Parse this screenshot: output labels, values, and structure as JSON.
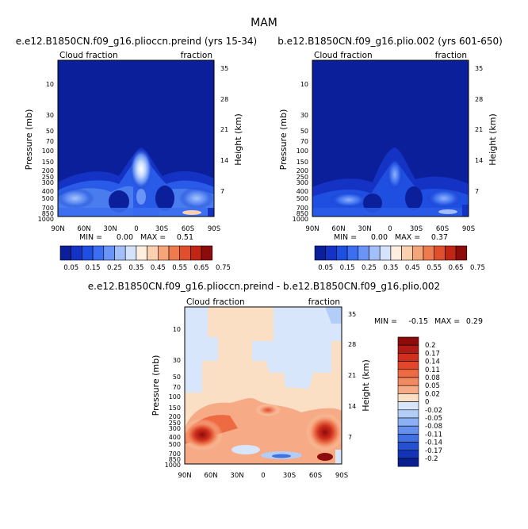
{
  "figure": {
    "title": "MAM"
  },
  "chart_data": [
    {
      "type": "heatmap",
      "title": "e.e12.B1850CN.f09_g16.plioccn.preind (yrs 15-34)",
      "left_string": "Cloud fraction",
      "right_string": "fraction",
      "ylabel": "Pressure (mb)",
      "ylabel_right": "Height (km)",
      "x_ticks": [
        "90N",
        "60N",
        "30N",
        "0",
        "30S",
        "60S",
        "90S"
      ],
      "y_ticks": [
        "10",
        "30",
        "50",
        "70",
        "100",
        "150",
        "200",
        "250",
        "300",
        "400",
        "500",
        "700",
        "850",
        "1000"
      ],
      "y_right_ticks": [
        "35",
        "28",
        "21",
        "14",
        "7"
      ],
      "min_label": "MIN =",
      "min_value": "0.00",
      "max_label": "MAX =",
      "max_value": "0.51",
      "colorbar_labels": [
        "0.05",
        "0.15",
        "0.25",
        "0.35",
        "0.45",
        "0.55",
        "0.65",
        "0.75"
      ],
      "colorbar_colors": [
        "#0a1f99",
        "#1433c4",
        "#1f4fe0",
        "#3b6ef0",
        "#6a95f7",
        "#a2bff9",
        "#d4e2fb",
        "#fdeee0",
        "#fbd0b0",
        "#f6a57a",
        "#ef7a4e",
        "#e04f2c",
        "#c02515",
        "#8d0b0b"
      ]
    },
    {
      "type": "heatmap",
      "title": "b.e12.B1850CN.f09_g16.plio.002 (yrs 601-650)",
      "left_string": "Cloud fraction",
      "right_string": "fraction",
      "ylabel": "Pressure (mb)",
      "ylabel_right": "Height (km)",
      "x_ticks": [
        "90N",
        "60N",
        "30N",
        "0",
        "30S",
        "60S",
        "90S"
      ],
      "y_ticks": [
        "10",
        "30",
        "50",
        "70",
        "100",
        "150",
        "200",
        "250",
        "300",
        "400",
        "500",
        "700",
        "850",
        "1000"
      ],
      "y_right_ticks": [
        "35",
        "28",
        "21",
        "14",
        "7"
      ],
      "min_label": "MIN =",
      "min_value": "0.00",
      "max_label": "MAX =",
      "max_value": "0.37",
      "colorbar_labels": [
        "0.05",
        "0.15",
        "0.25",
        "0.35",
        "0.45",
        "0.55",
        "0.65",
        "0.75"
      ]
    },
    {
      "type": "heatmap",
      "title": "e.e12.B1850CN.f09_g16.plioccn.preind - b.e12.B1850CN.f09_g16.plio.002",
      "left_string": "Cloud fraction",
      "right_string": "fraction",
      "ylabel": "Pressure (mb)",
      "ylabel_right": "Height (km)",
      "x_ticks": [
        "90N",
        "60N",
        "30N",
        "0",
        "30S",
        "60S",
        "90S"
      ],
      "y_ticks": [
        "10",
        "30",
        "50",
        "70",
        "100",
        "150",
        "200",
        "250",
        "300",
        "400",
        "500",
        "700",
        "850",
        "1000"
      ],
      "y_right_ticks": [
        "35",
        "28",
        "21",
        "14",
        "7"
      ],
      "min_label": "MIN =",
      "min_value": "-0.15",
      "max_label": "MAX =",
      "max_value": "0.29",
      "colorbar_labels": [
        "0.2",
        "0.17",
        "0.14",
        "0.11",
        "0.08",
        "0.05",
        "0.02",
        "0",
        "-0.02",
        "-0.05",
        "-0.08",
        "-0.11",
        "-0.14",
        "-0.17",
        "-0.2"
      ],
      "colorbar_colors": [
        "#8d0b0b",
        "#b01a14",
        "#cf2f1c",
        "#e3472b",
        "#ee6a43",
        "#f3895f",
        "#f6ab86",
        "#fbdfc4",
        "#d7e6fb",
        "#b3cdf9",
        "#8cb0f5",
        "#6690ee",
        "#4070e2",
        "#2550cf",
        "#1433b6",
        "#0a1f8f"
      ]
    }
  ]
}
